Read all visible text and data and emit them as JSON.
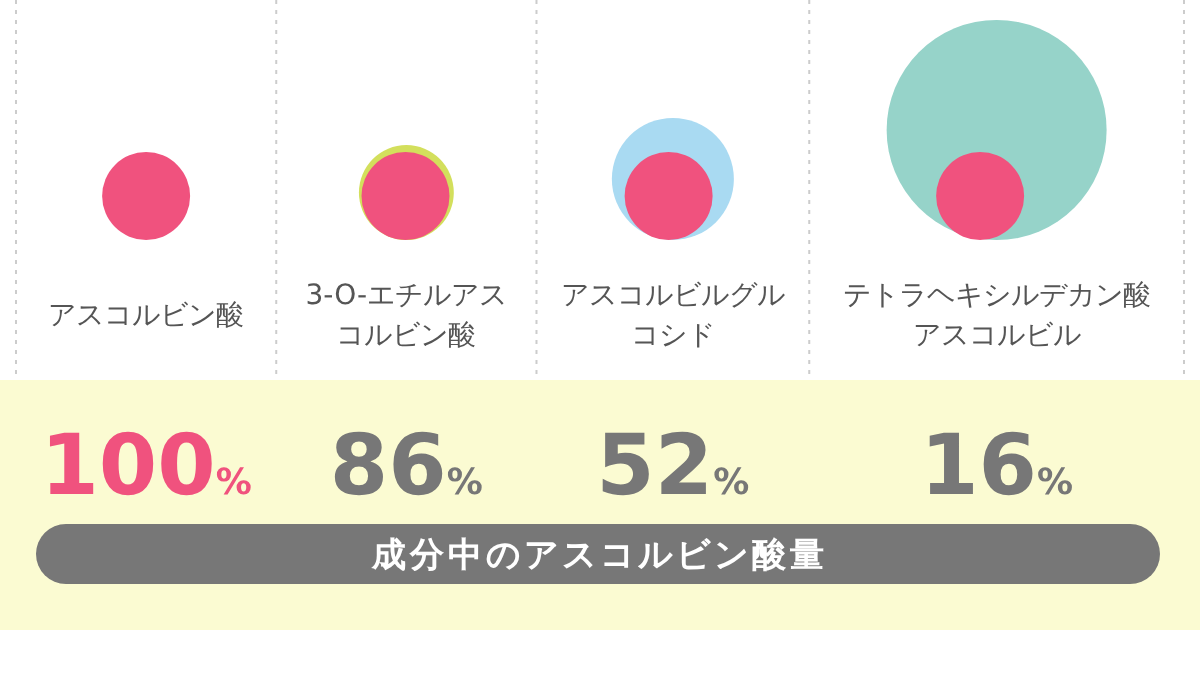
{
  "chart_data": {
    "type": "other",
    "categories": [
      "アスコルビン酸",
      "3-O-エチルアスコルビン酸",
      "アスコルビルグルコシド",
      "テトラヘキシルデカン酸アスコルビル"
    ],
    "values": [
      100,
      86,
      52,
      16
    ],
    "value_labels": [
      "100%",
      "86%",
      "52%",
      "16%"
    ],
    "colors": [
      "#f0527e",
      "#d3df5c",
      "#a9daf2",
      "#96d3c9"
    ],
    "annotations": [
      "成分中のアスコルビン酸量"
    ]
  }
}
